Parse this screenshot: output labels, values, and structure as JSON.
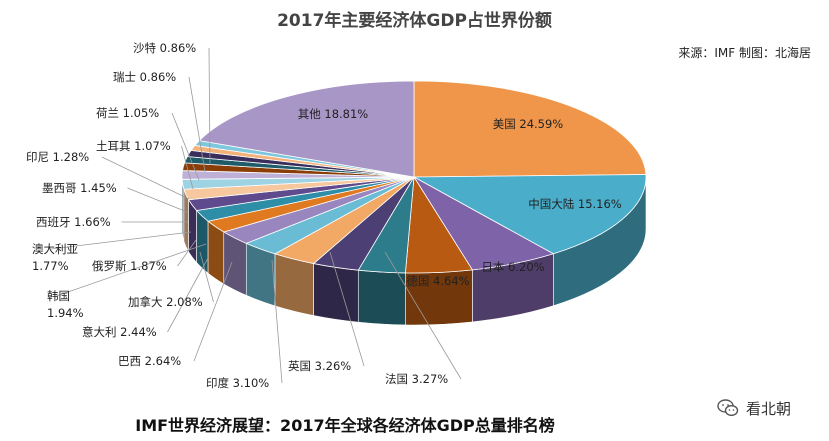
{
  "chart_data": {
    "type": "pie",
    "title": "2017年主要经济体GDP占世界份额",
    "source": "来源：IMF 制图：北海居",
    "subtitle": "IMF世界经济展望：2017年全球各经济体GDP总量排名榜",
    "unit": "%",
    "slices": [
      {
        "name": "美国",
        "value": 24.59,
        "label": "美国 24.59%",
        "color": "#f0964a"
      },
      {
        "name": "中国大陆",
        "value": 15.16,
        "label": "中国大陆 15.16%",
        "color": "#4aaecb"
      },
      {
        "name": "日本",
        "value": 6.2,
        "label": "日本 6.20%",
        "color": "#7e63a8"
      },
      {
        "name": "德国",
        "value": 4.64,
        "label": "德国 4.64%",
        "color": "#b85a12"
      },
      {
        "name": "法国",
        "value": 3.27,
        "label": "法国 3.27%",
        "color": "#2d7c8c"
      },
      {
        "name": "英国",
        "value": 3.26,
        "label": "英国 3.26%",
        "color": "#4b3f73"
      },
      {
        "name": "印度",
        "value": 3.1,
        "label": "印度 3.10%",
        "color": "#f2a966"
      },
      {
        "name": "巴西",
        "value": 2.64,
        "label": "巴西 2.64%",
        "color": "#69bcd3"
      },
      {
        "name": "意大利",
        "value": 2.44,
        "label": "意大利 2.44%",
        "color": "#9a86be"
      },
      {
        "name": "加拿大",
        "value": 2.08,
        "label": "加拿大 2.08%",
        "color": "#e07a20"
      },
      {
        "name": "韩国",
        "value": 1.94,
        "label": "韩国\n1.94%",
        "color": "#2e8ea8"
      },
      {
        "name": "俄罗斯",
        "value": 1.87,
        "label": "俄罗斯 1.87%",
        "color": "#5e4a8c"
      },
      {
        "name": "澳大利亚",
        "value": 1.77,
        "label": "澳大利亚\n1.77%",
        "color": "#f7c79d"
      },
      {
        "name": "西班牙",
        "value": 1.66,
        "label": "西班牙 1.66%",
        "color": "#9ed3e4"
      },
      {
        "name": "墨西哥",
        "value": 1.45,
        "label": "墨西哥 1.45%",
        "color": "#bfb0d8"
      },
      {
        "name": "印尼",
        "value": 1.28,
        "label": "印尼 1.28%",
        "color": "#8a3d06"
      },
      {
        "name": "土耳其",
        "value": 1.07,
        "label": "土耳其 1.07%",
        "color": "#1f5c6a"
      },
      {
        "name": "荷兰",
        "value": 1.05,
        "label": "荷兰 1.05%",
        "color": "#3a2f5c"
      },
      {
        "name": "瑞士",
        "value": 0.86,
        "label": "瑞士 0.86%",
        "color": "#f4b27a"
      },
      {
        "name": "沙特",
        "value": 0.86,
        "label": "沙特 0.86%",
        "color": "#7fc7dc"
      },
      {
        "name": "其他",
        "value": 18.81,
        "label": "其他 18.81%",
        "color": "#a896c6"
      }
    ]
  },
  "watermark": {
    "text": "看北朝"
  }
}
